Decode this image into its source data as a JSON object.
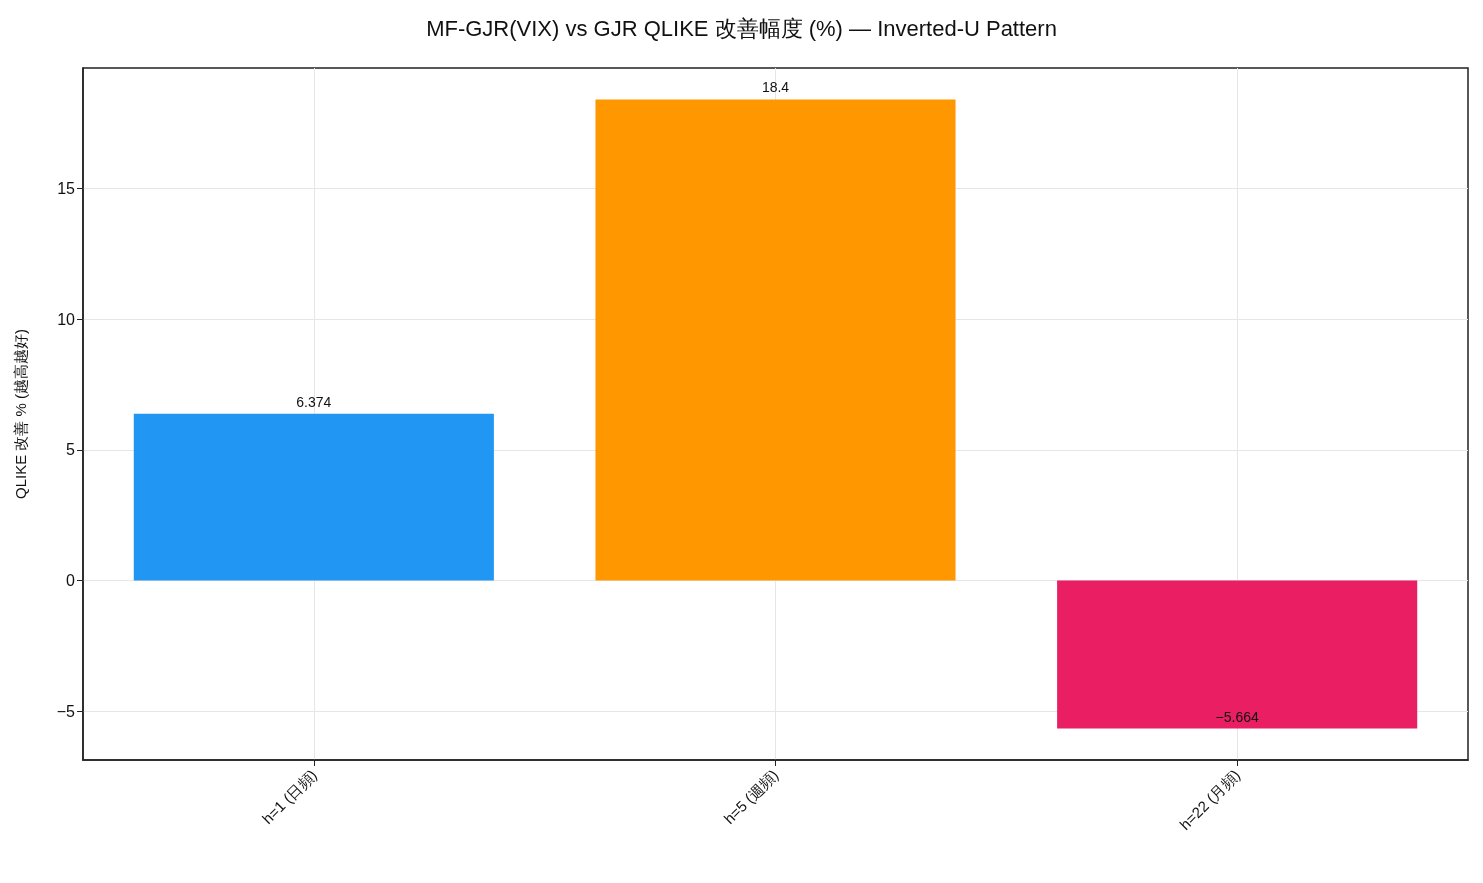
{
  "chart_data": {
    "type": "bar",
    "title": "MF-GJR(VIX) vs GJR QLIKE 改善幅度 (%) — Inverted-U Pattern",
    "ylabel": "QLIKE 改善 % (越高越好)",
    "categories": [
      "h=1 (日頻)",
      "h=5 (週頻)",
      "h=22 (月頻)"
    ],
    "values": [
      6.374,
      18.4,
      -5.664
    ],
    "colors": [
      "#2196f3",
      "#ff9800",
      "#e91e63"
    ],
    "value_labels": [
      "6.374",
      "18.4",
      "−5.664"
    ],
    "ylim": [
      -6.867,
      19.603
    ],
    "yticks": [
      {
        "value": -5,
        "label": "−5"
      },
      0,
      5,
      10,
      15
    ],
    "grid": true
  }
}
